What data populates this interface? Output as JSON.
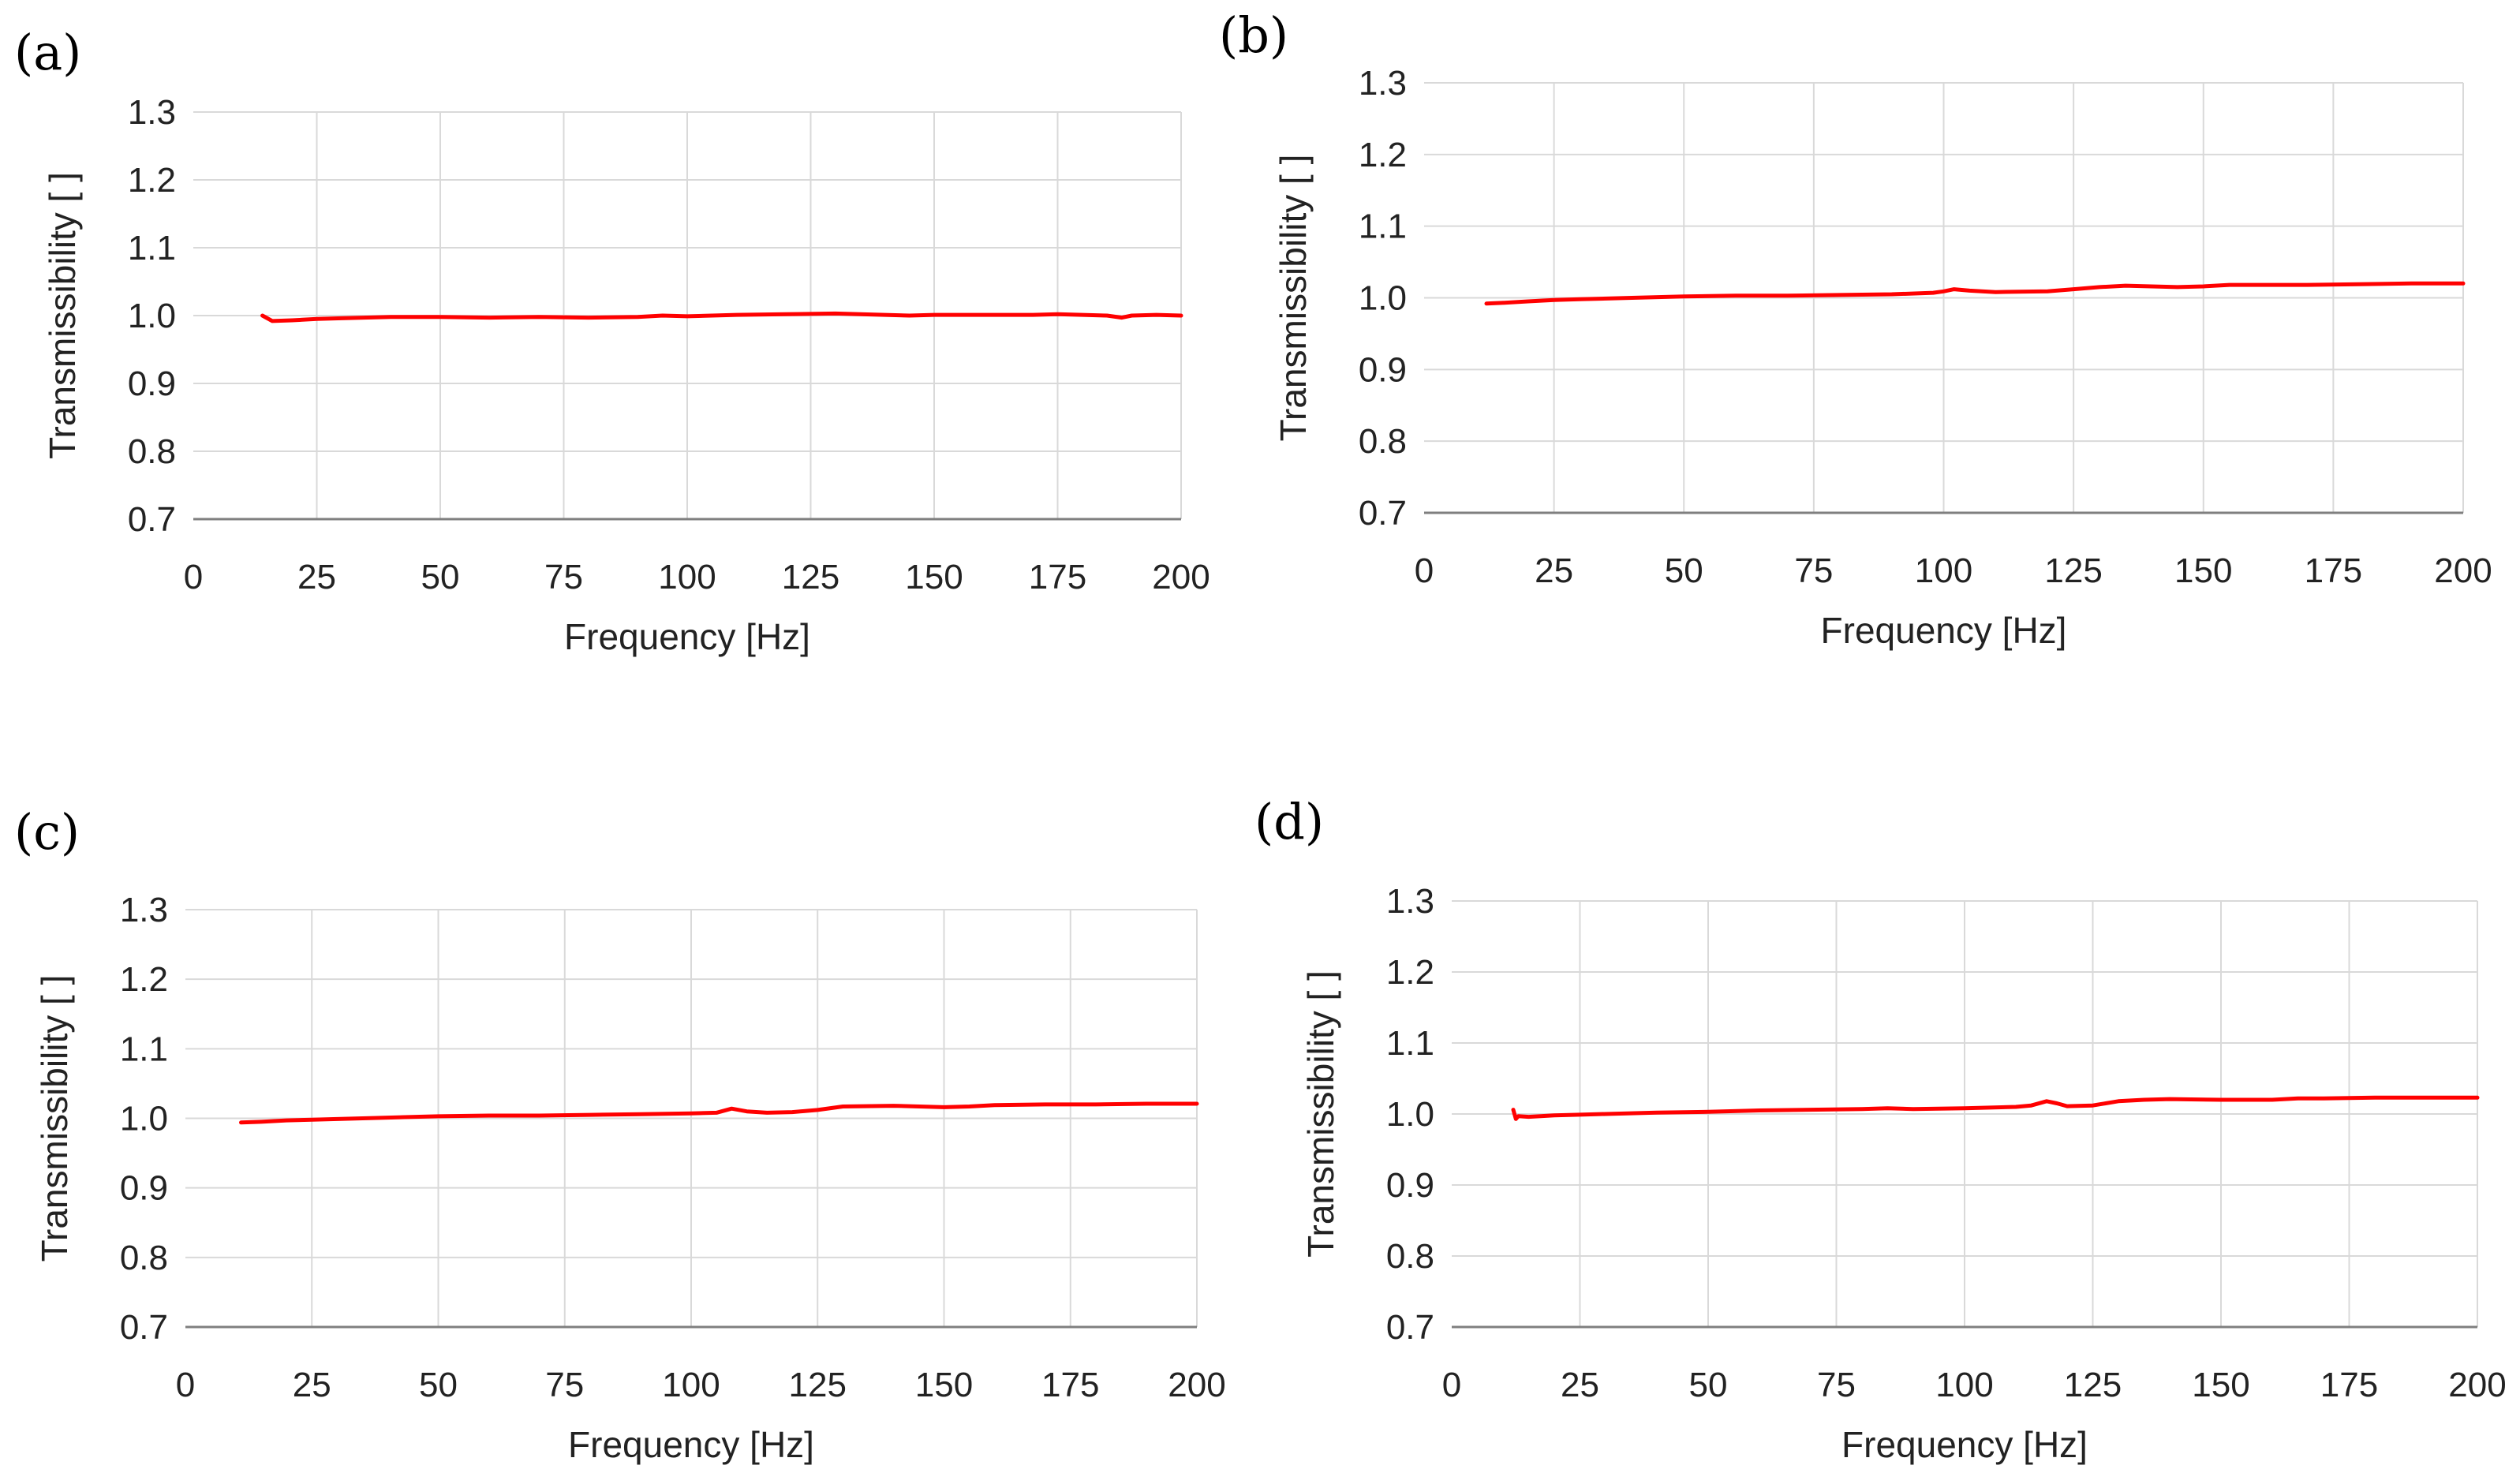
{
  "figure": {
    "panels": [
      "(a)",
      "(b)",
      "(c)",
      "(d)"
    ]
  },
  "chart_data": [
    {
      "type": "line",
      "panel": "(a)",
      "xlabel": "Frequency [Hz]",
      "ylabel": "Transmissibility [ ]",
      "xlim": [
        0,
        200
      ],
      "ylim": [
        0.7,
        1.3
      ],
      "xticks": [
        "0",
        "25",
        "50",
        "75",
        "100",
        "125",
        "150",
        "175",
        "200"
      ],
      "yticks": [
        "0.7",
        "0.8",
        "0.9",
        "1.0",
        "1.1",
        "1.2",
        "1.3"
      ],
      "grid": true,
      "color": "#ff0000",
      "series": [
        {
          "name": "Transmissibility",
          "x": [
            14,
            16,
            20,
            25,
            30,
            40,
            50,
            60,
            70,
            80,
            90,
            95,
            100,
            110,
            120,
            130,
            135,
            140,
            145,
            150,
            160,
            170,
            175,
            180,
            185,
            188,
            190,
            195,
            200
          ],
          "y": [
            1.0,
            0.992,
            0.993,
            0.995,
            0.996,
            0.998,
            0.998,
            0.997,
            0.998,
            0.997,
            0.998,
            1.0,
            0.999,
            1.001,
            1.002,
            1.003,
            1.002,
            1.001,
            1.0,
            1.001,
            1.001,
            1.001,
            1.002,
            1.001,
            1.0,
            0.997,
            1.0,
            1.001,
            1.0
          ]
        }
      ]
    },
    {
      "type": "line",
      "panel": "(b)",
      "xlabel": "Frequency [Hz]",
      "ylabel": "Transmissibility [ ]",
      "xlim": [
        0,
        200
      ],
      "ylim": [
        0.7,
        1.3
      ],
      "xticks": [
        "0",
        "25",
        "50",
        "75",
        "100",
        "125",
        "150",
        "175",
        "200"
      ],
      "yticks": [
        "0.7",
        "0.8",
        "0.9",
        "1.0",
        "1.1",
        "1.2",
        "1.3"
      ],
      "grid": true,
      "color": "#ff0000",
      "series": [
        {
          "name": "Transmissibility",
          "x": [
            12,
            15,
            20,
            25,
            30,
            40,
            50,
            60,
            70,
            80,
            90,
            98,
            100,
            102,
            105,
            110,
            120,
            125,
            130,
            135,
            140,
            145,
            150,
            155,
            160,
            170,
            180,
            190,
            200
          ],
          "y": [
            0.992,
            0.993,
            0.995,
            0.997,
            0.998,
            1.0,
            1.002,
            1.003,
            1.003,
            1.004,
            1.005,
            1.007,
            1.009,
            1.012,
            1.01,
            1.008,
            1.009,
            1.012,
            1.015,
            1.017,
            1.016,
            1.015,
            1.016,
            1.018,
            1.018,
            1.018,
            1.019,
            1.02,
            1.02
          ]
        }
      ]
    },
    {
      "type": "line",
      "panel": "(c)",
      "xlabel": "Frequency [Hz]",
      "ylabel": "Transmissibility [ ]",
      "xlim": [
        0,
        200
      ],
      "ylim": [
        0.7,
        1.3
      ],
      "xticks": [
        "0",
        "25",
        "50",
        "75",
        "100",
        "125",
        "150",
        "175",
        "200"
      ],
      "yticks": [
        "0.7",
        "0.8",
        "0.9",
        "1.0",
        "1.1",
        "1.2",
        "1.3"
      ],
      "grid": true,
      "color": "#ff0000",
      "series": [
        {
          "name": "Transmissibility",
          "x": [
            11,
            15,
            20,
            25,
            30,
            40,
            50,
            60,
            70,
            80,
            90,
            100,
            105,
            108,
            111,
            115,
            120,
            125,
            130,
            140,
            150,
            155,
            160,
            170,
            180,
            190,
            200
          ],
          "y": [
            0.994,
            0.995,
            0.997,
            0.998,
            0.999,
            1.001,
            1.003,
            1.004,
            1.004,
            1.005,
            1.006,
            1.007,
            1.008,
            1.014,
            1.01,
            1.008,
            1.009,
            1.012,
            1.017,
            1.018,
            1.016,
            1.017,
            1.019,
            1.02,
            1.02,
            1.021,
            1.021
          ]
        }
      ]
    },
    {
      "type": "line",
      "panel": "(d)",
      "xlabel": "Frequency [Hz]",
      "ylabel": "Transmissibility [ ]",
      "xlim": [
        0,
        200
      ],
      "ylim": [
        0.7,
        1.3
      ],
      "xticks": [
        "0",
        "25",
        "50",
        "75",
        "100",
        "125",
        "150",
        "175",
        "200"
      ],
      "yticks": [
        "0.7",
        "0.8",
        "0.9",
        "1.0",
        "1.1",
        "1.2",
        "1.3"
      ],
      "grid": true,
      "color": "#ff0000",
      "series": [
        {
          "name": "Transmissibility",
          "x": [
            12,
            12.5,
            13,
            15,
            20,
            25,
            30,
            40,
            50,
            60,
            70,
            80,
            85,
            90,
            100,
            110,
            113,
            116,
            118,
            120,
            125,
            130,
            135,
            140,
            150,
            160,
            165,
            170,
            180,
            190,
            200
          ],
          "y": [
            1.006,
            0.993,
            0.997,
            0.996,
            0.998,
            0.999,
            1.0,
            1.002,
            1.003,
            1.005,
            1.006,
            1.007,
            1.008,
            1.007,
            1.008,
            1.01,
            1.012,
            1.018,
            1.015,
            1.011,
            1.012,
            1.018,
            1.02,
            1.021,
            1.02,
            1.02,
            1.022,
            1.022,
            1.023,
            1.023,
            1.023
          ]
        }
      ]
    }
  ]
}
